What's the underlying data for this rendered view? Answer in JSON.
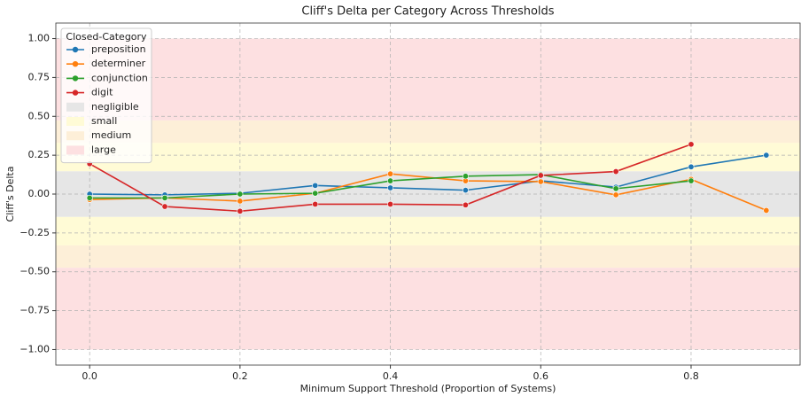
{
  "chart_data": {
    "type": "line",
    "title": "Cliff's Delta per Category Across Thresholds",
    "xlabel": "Minimum Support Threshold (Proportion of Systems)",
    "ylabel": "Cliff's Delta",
    "x": [
      0,
      0.1,
      0.2,
      0.3,
      0.4,
      0.5,
      0.6,
      0.7,
      0.8,
      0.9
    ],
    "series": [
      {
        "name": "preposition",
        "color": "#1f77b4",
        "values": [
          0.0,
          -0.005,
          0.005,
          0.055,
          0.04,
          0.025,
          0.085,
          0.045,
          0.175,
          0.25
        ]
      },
      {
        "name": "determiner",
        "color": "#ff7f0e",
        "values": [
          -0.035,
          -0.025,
          -0.045,
          0.005,
          0.13,
          0.085,
          0.08,
          -0.005,
          0.095,
          -0.105
        ]
      },
      {
        "name": "conjunction",
        "color": "#2ca02c",
        "values": [
          -0.025,
          -0.025,
          0.0,
          0.005,
          0.085,
          0.115,
          0.125,
          0.035,
          0.085,
          null
        ]
      },
      {
        "name": "digit",
        "color": "#d62728",
        "values": [
          0.195,
          -0.08,
          -0.11,
          -0.065,
          -0.065,
          -0.07,
          0.12,
          0.145,
          0.32,
          null
        ]
      }
    ],
    "bands": [
      {
        "name": "negligible",
        "color": "#e6e6e6",
        "range": [
          -0.147,
          0.147
        ]
      },
      {
        "name": "small",
        "color": "#fffbd6",
        "range": [
          0.147,
          0.33
        ]
      },
      {
        "name": "medium",
        "color": "#fdefd8",
        "range": [
          0.33,
          0.474
        ]
      },
      {
        "name": "large",
        "color": "#fde0e1",
        "range": [
          0.474,
          1.0
        ]
      }
    ],
    "legend_title": "Closed-Category",
    "legend": "upper left",
    "grid": true,
    "xlim": [
      -0.045,
      0.945
    ],
    "ylim": [
      -1.1,
      1.1
    ],
    "xticks": [
      {
        "value": 0,
        "label": "0.0"
      },
      {
        "value": 0.2,
        "label": "0.2"
      },
      {
        "value": 0.4,
        "label": "0.4"
      },
      {
        "value": 0.6,
        "label": "0.6"
      },
      {
        "value": 0.8,
        "label": "0.8"
      }
    ],
    "yticks": [
      {
        "value": 1,
        "label": "1.00"
      },
      {
        "value": 0.75,
        "label": "0.75"
      },
      {
        "value": 0.5,
        "label": "0.50"
      },
      {
        "value": 0.25,
        "label": "0.25"
      },
      {
        "value": 0,
        "label": "0.00"
      },
      {
        "value": -0.25,
        "label": "−0.25"
      },
      {
        "value": -0.5,
        "label": "−0.50"
      },
      {
        "value": -0.75,
        "label": "−0.75"
      },
      {
        "value": -1,
        "label": "−1.00"
      }
    ]
  }
}
